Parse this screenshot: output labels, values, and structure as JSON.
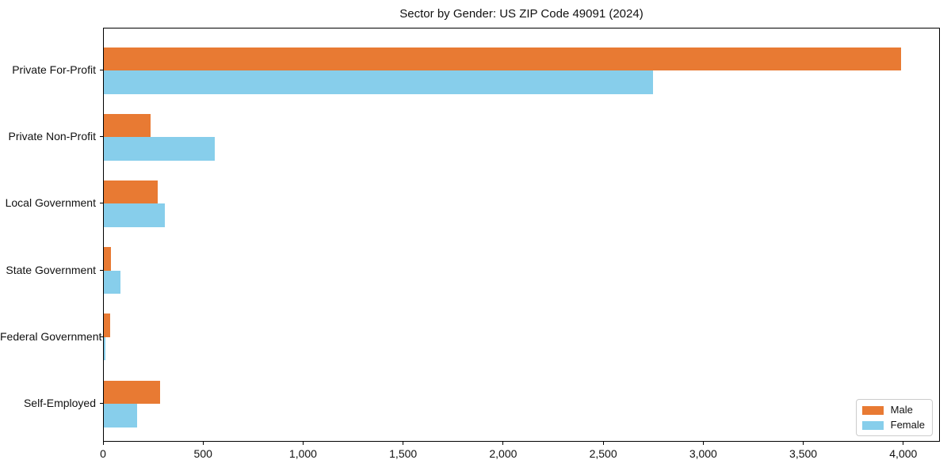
{
  "title": "Sector by Gender: US ZIP Code 49091 (2024)",
  "colors": {
    "male": "#e87a33",
    "female": "#87ceeb",
    "spine": "#000000",
    "legend_border": "#cccccc",
    "background": "#ffffff"
  },
  "chart_data": {
    "type": "bar",
    "orientation": "horizontal",
    "title": "Sector by Gender: US ZIP Code 49091 (2024)",
    "xlabel": "",
    "ylabel": "",
    "categories": [
      "Private For-Profit",
      "Private Non-Profit",
      "Local Government",
      "State Government",
      "Federal Government",
      "Self-Employed"
    ],
    "series": [
      {
        "name": "Male",
        "color": "#e87a33",
        "values": [
          3985,
          234,
          269,
          36,
          32,
          281
        ]
      },
      {
        "name": "Female",
        "color": "#87ceeb",
        "values": [
          2745,
          554,
          305,
          83,
          6,
          166
        ]
      }
    ],
    "xlim": [
      0,
      4183
    ],
    "x_ticks": [
      0,
      500,
      1000,
      1500,
      2000,
      2500,
      3000,
      3500,
      4000
    ],
    "x_tick_labels": [
      "0",
      "500",
      "1,000",
      "1,500",
      "2,000",
      "2,500",
      "3,000",
      "3,500",
      "4,000"
    ],
    "grid": false,
    "legend_position": "lower right"
  }
}
